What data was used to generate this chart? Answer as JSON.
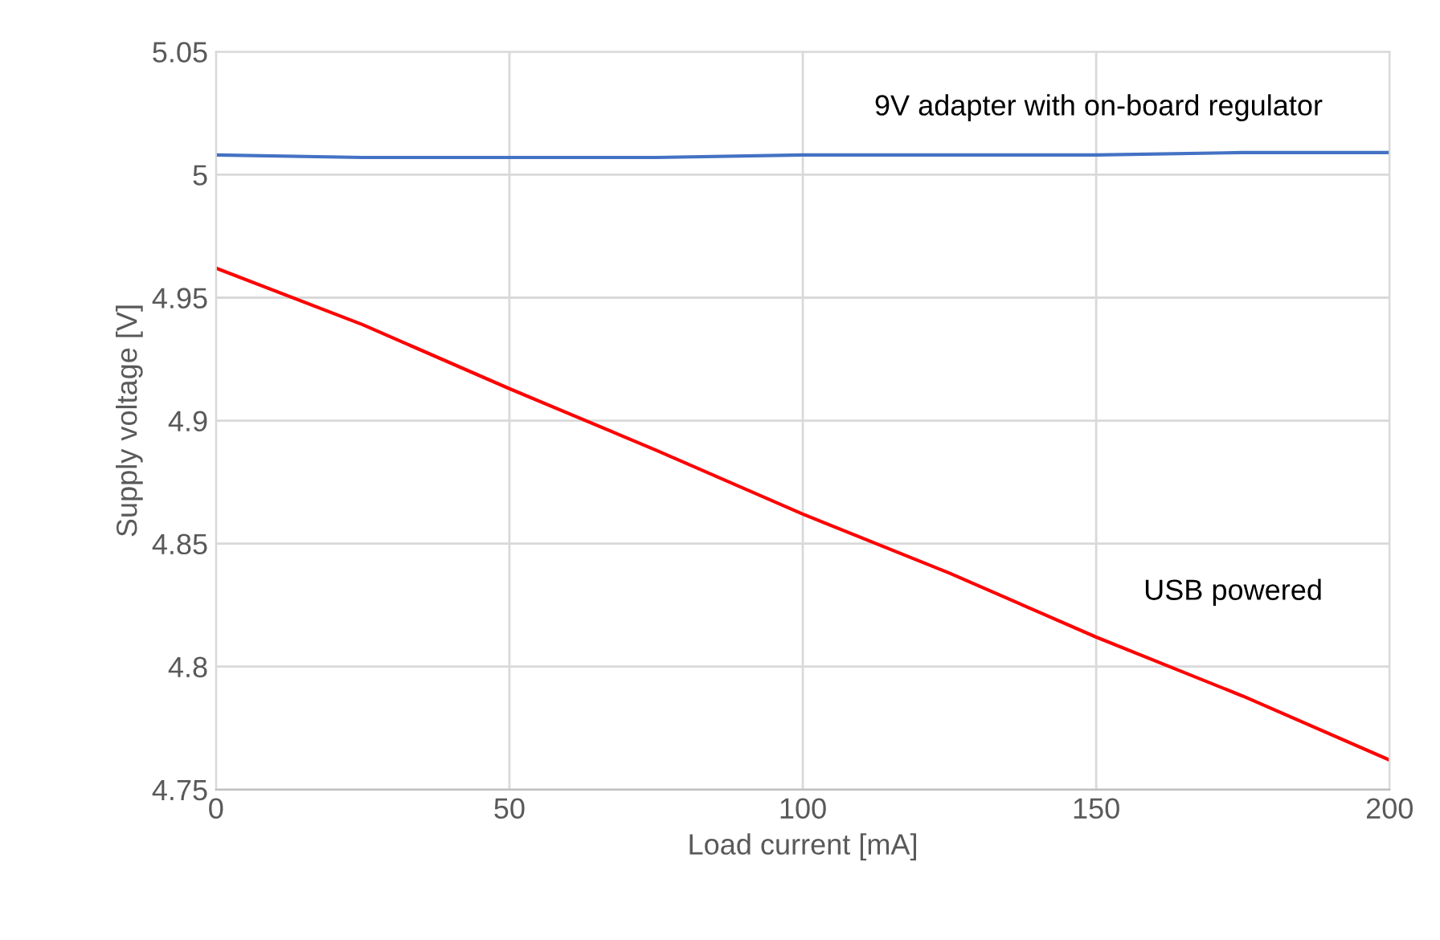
{
  "chart_data": {
    "type": "line",
    "xlabel": "Load current [mA]",
    "ylabel": "Supply voltage [V]",
    "xlim": [
      0,
      200
    ],
    "xticks": [
      0,
      50,
      100,
      150,
      200
    ],
    "ylim": [
      4.75,
      5.05
    ],
    "yticks": [
      {
        "value": 4.75,
        "label": "4.75"
      },
      {
        "value": 4.8,
        "label": "4.8"
      },
      {
        "value": 4.85,
        "label": "4.85"
      },
      {
        "value": 4.9,
        "label": "4.9"
      },
      {
        "value": 4.95,
        "label": "4.95"
      },
      {
        "value": 5.0,
        "label": "5"
      },
      {
        "value": 5.05,
        "label": "5.05"
      }
    ],
    "grid": true,
    "legend": false,
    "marker": "none",
    "line_style": "solid",
    "series": [
      {
        "name": "9V adapter with on-board regulator",
        "color": "#4472c4",
        "x": [
          0,
          25,
          50,
          75,
          100,
          125,
          150,
          175,
          200
        ],
        "values": [
          5.008,
          5.007,
          5.007,
          5.007,
          5.008,
          5.008,
          5.008,
          5.009,
          5.009
        ]
      },
      {
        "name": "USB powered",
        "color": "#ff0000",
        "x": [
          0,
          25,
          50,
          75,
          100,
          125,
          150,
          175,
          200
        ],
        "values": [
          4.962,
          4.939,
          4.913,
          4.888,
          4.862,
          4.838,
          4.812,
          4.788,
          4.762
        ]
      }
    ]
  }
}
